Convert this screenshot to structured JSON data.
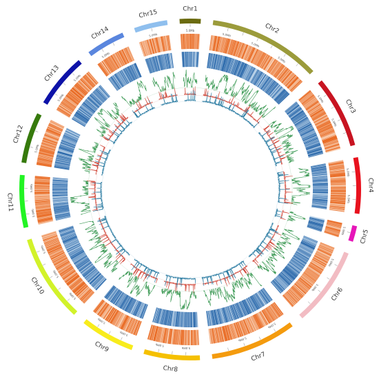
{
  "chart_data": {
    "type": "circos",
    "chromosomes": [
      {
        "name": "Chr1",
        "length": 24,
        "color": "#6b6b0f"
      },
      {
        "name": "Chr2",
        "length": 128,
        "color": "#9b9b3b"
      },
      {
        "name": "Chr3",
        "length": 82,
        "color": "#c81421"
      },
      {
        "name": "Chr4",
        "length": 64,
        "color": "#e8121e"
      },
      {
        "name": "Chr5",
        "length": 18,
        "color": "#e616b8"
      },
      {
        "name": "Chr6",
        "length": 90,
        "color": "#f2bcc3"
      },
      {
        "name": "Chr7",
        "length": 98,
        "color": "#f49b0e"
      },
      {
        "name": "Chr8",
        "length": 64,
        "color": "#f5c000"
      },
      {
        "name": "Chr9",
        "length": 62,
        "color": "#f8ec1c"
      },
      {
        "name": "Chr10",
        "length": 100,
        "color": "#d2f22a"
      },
      {
        "name": "Chr11",
        "length": 60,
        "color": "#22f424"
      },
      {
        "name": "Chr12",
        "length": 58,
        "color": "#367a0c"
      },
      {
        "name": "Chr13",
        "length": 62,
        "color": "#0d12a8"
      },
      {
        "name": "Chr14",
        "length": 44,
        "color": "#5a86de"
      },
      {
        "name": "Chr15",
        "length": 38,
        "color": "#8fbfee"
      }
    ],
    "tracks": [
      {
        "kind": "heatmap",
        "palette": "orange"
      },
      {
        "kind": "heatmap",
        "palette": "blue"
      },
      {
        "kind": "line",
        "color": "#3f9b57"
      },
      {
        "kind": "line",
        "color": "#d24a3c"
      },
      {
        "kind": "line",
        "color": "#2d7da3"
      }
    ],
    "tick_label": "5.0Mb",
    "colors": {
      "orange_dark": "#e8641a",
      "orange_light": "#fbe3cf",
      "blue_dark": "#2464a8",
      "blue_light": "#dcebf7"
    }
  }
}
